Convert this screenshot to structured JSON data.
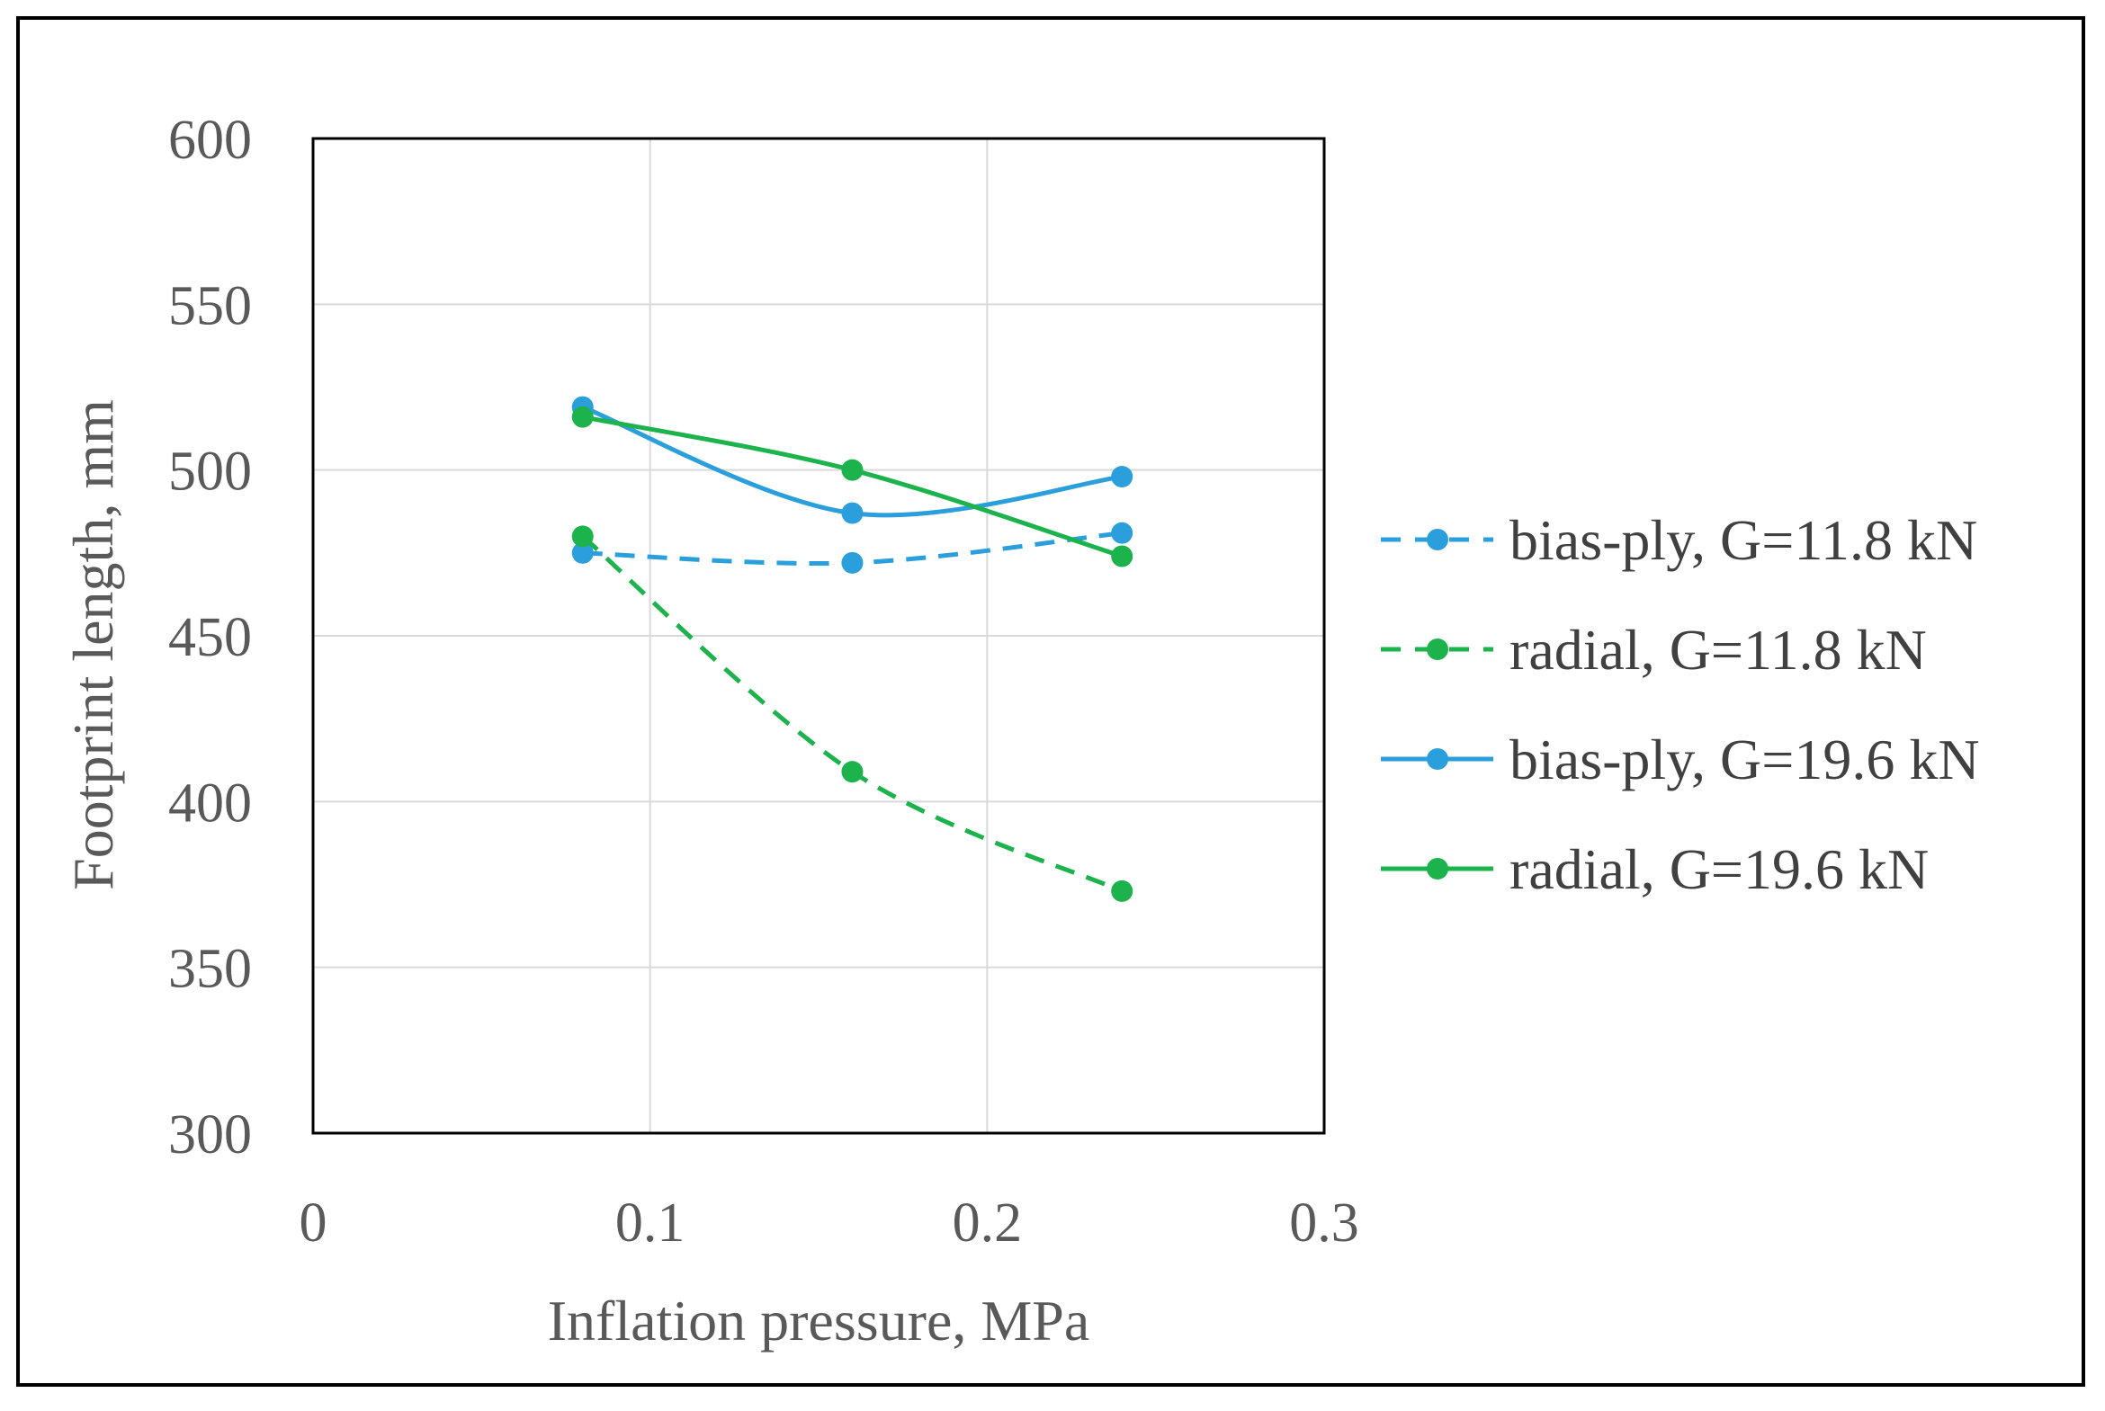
{
  "chart_data": {
    "type": "scatter",
    "xlabel": "Inflation pressure,  MPa",
    "ylabel": "Footprint  length, mm",
    "xlim": [
      0,
      0.3
    ],
    "ylim": [
      300,
      600
    ],
    "xticks": [
      "0",
      "0.1",
      "0.2",
      "0.3"
    ],
    "yticks": [
      "300",
      "350",
      "400",
      "450",
      "500",
      "550",
      "600"
    ],
    "grid": true,
    "legend_position": "right",
    "series": [
      {
        "name": "bias-ply, G=11.8 kN",
        "color": "#2b9fdc",
        "dashed": true,
        "x": [
          0.08,
          0.16,
          0.24
        ],
        "y": [
          475,
          472,
          481
        ]
      },
      {
        "name": "radial, G=11.8 kN",
        "color": "#1db34c",
        "dashed": true,
        "x": [
          0.08,
          0.16,
          0.24
        ],
        "y": [
          480,
          409,
          373
        ]
      },
      {
        "name": "bias-ply, G=19.6 kN",
        "color": "#2b9fdc",
        "dashed": false,
        "x": [
          0.08,
          0.16,
          0.24
        ],
        "y": [
          519,
          487,
          498
        ]
      },
      {
        "name": "radial, G=19.6 kN",
        "color": "#1db34c",
        "dashed": false,
        "x": [
          0.08,
          0.16,
          0.24
        ],
        "y": [
          516,
          500,
          474
        ]
      }
    ]
  }
}
